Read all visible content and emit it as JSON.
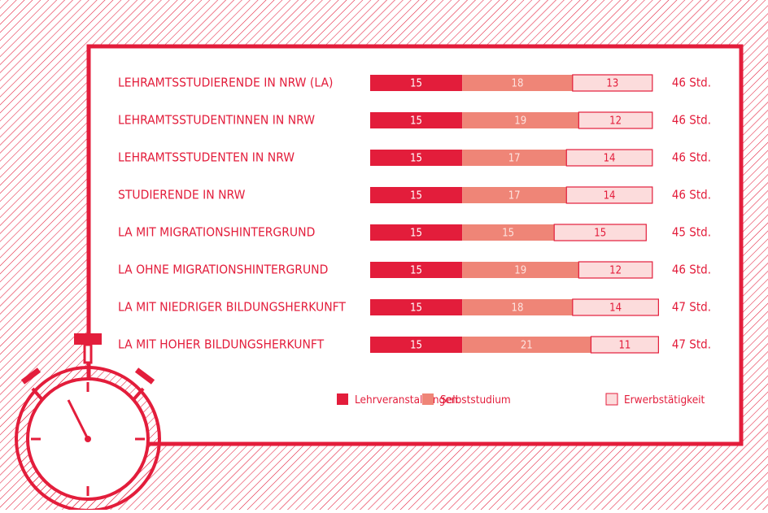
{
  "chart_data": {
    "type": "stacked-bar",
    "categories": [
      "LEHRAMTSSTUDIERENDE IN NRW (LA)",
      "LEHRAMTSSTUDENTINNEN IN NRW",
      "LEHRAMTSSTUDENTEN IN NRW",
      "STUDIERENDE IN NRW",
      "LA MIT MIGRATIONSHINTERGRUND",
      "LA OHNE MIGRATIONSHINTERGRUND",
      "LA MIT NIEDRIGER BILDUNGSHERKUNFT",
      "LA MIT HOHER BILDUNGSHERKUNFT"
    ],
    "series": [
      {
        "name": "Lehrveranstaltungen",
        "color": "#e31d3b",
        "values": [
          15,
          15,
          15,
          15,
          15,
          15,
          15,
          15
        ]
      },
      {
        "name": "Selbststudium",
        "color": "#ef8577",
        "values": [
          18,
          19,
          17,
          17,
          15,
          19,
          18,
          21
        ]
      },
      {
        "name": "Erwerbstätigkeit",
        "color": "#fcdcdc",
        "values": [
          13,
          12,
          14,
          14,
          15,
          12,
          14,
          11
        ]
      }
    ],
    "totals": [
      "46 Std.",
      "46 Std.",
      "46 Std.",
      "46 Std.",
      "45 Std.",
      "46 Std.",
      "47 Std.",
      "47 Std."
    ]
  }
}
